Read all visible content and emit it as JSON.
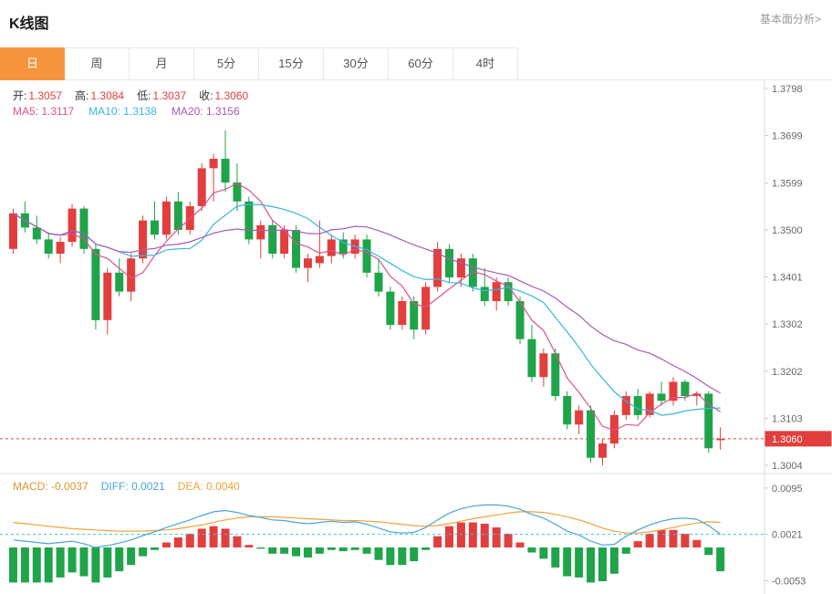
{
  "header": {
    "title": "K线图",
    "link": "基本面分析>"
  },
  "tabs": {
    "active_index": 0,
    "items": [
      {
        "label": "日",
        "name": "tab-day"
      },
      {
        "label": "周",
        "name": "tab-week"
      },
      {
        "label": "月",
        "name": "tab-month"
      },
      {
        "label": "5分",
        "name": "tab-5min"
      },
      {
        "label": "15分",
        "name": "tab-15min"
      },
      {
        "label": "30分",
        "name": "tab-30min"
      },
      {
        "label": "60分",
        "name": "tab-60min"
      },
      {
        "label": "4时",
        "name": "tab-4hour"
      }
    ]
  },
  "legend": {
    "ohlc": [
      {
        "label": "开:",
        "value": "1.3057"
      },
      {
        "label": "高:",
        "value": "1.3084"
      },
      {
        "label": "低:",
        "value": "1.3037"
      },
      {
        "label": "收:",
        "value": "1.3060"
      }
    ],
    "ma": [
      {
        "label": "MA5:",
        "value": "1.3117"
      },
      {
        "label": "MA10:",
        "value": "1.3138"
      },
      {
        "label": "MA20:",
        "value": "1.3156"
      }
    ]
  },
  "macd_legend": [
    {
      "label": "MACD:",
      "value": "-0.0037"
    },
    {
      "label": "DIFF:",
      "value": "0.0021"
    },
    {
      "label": "DEA:",
      "value": "0.0040"
    }
  ],
  "colors": {
    "up": "#e23e3e",
    "down": "#1fa44a",
    "ma5": "#e0508e",
    "ma10": "#38b6e0",
    "ma20": "#a55bb5",
    "diff": "#4ba3dc",
    "dea": "#f0a23a",
    "accent": "#f7953e",
    "price_tag": "#e23e3e",
    "axis_text": "#666666",
    "grid": "#dddddd",
    "current_diff_line": "#35c8e8"
  },
  "chart_data": [
    {
      "type": "candlestick",
      "title": "K线图",
      "timeframe": "日",
      "ohlc_last": {
        "open": 1.3057,
        "high": 1.3084,
        "low": 1.3037,
        "close": 1.306
      },
      "ma_periods": [
        5,
        10,
        20
      ],
      "ylim": [
        1.3004,
        1.3798
      ],
      "y_ticks": [
        1.3798,
        1.3699,
        1.3599,
        1.35,
        1.3401,
        1.3302,
        1.3202,
        1.3103,
        1.3004
      ],
      "current_price": 1.306,
      "candles": [
        [
          1.346,
          1.3545,
          1.345,
          1.3535
        ],
        [
          1.3535,
          1.356,
          1.3495,
          1.3505
        ],
        [
          1.3505,
          1.353,
          1.347,
          1.348
        ],
        [
          1.348,
          1.3495,
          1.344,
          1.345
        ],
        [
          1.345,
          1.3485,
          1.343,
          1.3475
        ],
        [
          1.3475,
          1.3555,
          1.3465,
          1.3545
        ],
        [
          1.3545,
          1.355,
          1.345,
          1.346
        ],
        [
          1.346,
          1.347,
          1.329,
          1.331
        ],
        [
          1.331,
          1.342,
          1.328,
          1.341
        ],
        [
          1.341,
          1.344,
          1.336,
          1.337
        ],
        [
          1.337,
          1.345,
          1.335,
          1.344
        ],
        [
          1.344,
          1.353,
          1.343,
          1.352
        ],
        [
          1.352,
          1.356,
          1.348,
          1.349
        ],
        [
          1.349,
          1.357,
          1.348,
          1.356
        ],
        [
          1.356,
          1.358,
          1.349,
          1.35
        ],
        [
          1.35,
          1.356,
          1.349,
          1.355
        ],
        [
          1.355,
          1.364,
          1.354,
          1.363
        ],
        [
          1.363,
          1.366,
          1.356,
          1.365
        ],
        [
          1.365,
          1.371,
          1.358,
          1.36
        ],
        [
          1.36,
          1.364,
          1.354,
          1.356
        ],
        [
          1.356,
          1.357,
          1.347,
          1.348
        ],
        [
          1.348,
          1.352,
          1.344,
          1.351
        ],
        [
          1.351,
          1.352,
          1.344,
          1.345
        ],
        [
          1.345,
          1.351,
          1.344,
          1.35
        ],
        [
          1.35,
          1.351,
          1.341,
          1.342
        ],
        [
          1.342,
          1.345,
          1.339,
          1.344
        ],
        [
          1.343,
          1.352,
          1.342,
          1.3445
        ],
        [
          1.3445,
          1.349,
          1.343,
          1.348
        ],
        [
          1.348,
          1.3495,
          1.344,
          1.345
        ],
        [
          1.345,
          1.349,
          1.344,
          1.348
        ],
        [
          1.348,
          1.349,
          1.34,
          1.341
        ],
        [
          1.341,
          1.344,
          1.336,
          1.337
        ],
        [
          1.337,
          1.338,
          1.329,
          1.33
        ],
        [
          1.33,
          1.336,
          1.329,
          1.335
        ],
        [
          1.335,
          1.336,
          1.327,
          1.329
        ],
        [
          1.329,
          1.339,
          1.328,
          1.338
        ],
        [
          1.338,
          1.3475,
          1.337,
          1.346
        ],
        [
          1.346,
          1.347,
          1.339,
          1.34
        ],
        [
          1.34,
          1.345,
          1.338,
          1.344
        ],
        [
          1.344,
          1.345,
          1.337,
          1.338
        ],
        [
          1.338,
          1.342,
          1.334,
          1.335
        ],
        [
          1.335,
          1.34,
          1.333,
          1.339
        ],
        [
          1.339,
          1.34,
          1.334,
          1.335
        ],
        [
          1.335,
          1.336,
          1.326,
          1.327
        ],
        [
          1.327,
          1.33,
          1.318,
          1.319
        ],
        [
          1.319,
          1.325,
          1.317,
          1.324
        ],
        [
          1.324,
          1.325,
          1.314,
          1.315
        ],
        [
          1.315,
          1.316,
          1.308,
          1.309
        ],
        [
          1.309,
          1.313,
          1.307,
          1.312
        ],
        [
          1.312,
          1.313,
          1.301,
          1.302
        ],
        [
          1.302,
          1.306,
          1.3004,
          1.305
        ],
        [
          1.305,
          1.312,
          1.304,
          1.311
        ],
        [
          1.311,
          1.316,
          1.31,
          1.315
        ],
        [
          1.315,
          1.3165,
          1.31,
          1.311
        ],
        [
          1.311,
          1.316,
          1.3105,
          1.3155
        ],
        [
          1.3155,
          1.318,
          1.313,
          1.314
        ],
        [
          1.314,
          1.319,
          1.313,
          1.318
        ],
        [
          1.318,
          1.3185,
          1.314,
          1.315
        ],
        [
          1.315,
          1.316,
          1.313,
          1.3155
        ],
        [
          1.3155,
          1.316,
          1.303,
          1.304
        ],
        [
          1.3057,
          1.3084,
          1.3037,
          1.306
        ]
      ]
    },
    {
      "type": "bar",
      "name": "MACD",
      "values_last": {
        "macd": -0.0037,
        "diff": 0.0021,
        "dea": 0.004
      },
      "hist_formula": "2*(DIFF-DEA)",
      "ylim": [
        -0.007,
        0.0105
      ],
      "y_ticks": [
        0.0095,
        0.0021,
        -0.0053
      ],
      "series": [
        {
          "name": "DIFF",
          "values": [
            0.0012,
            0.001,
            0.0008,
            0.0006,
            0.0008,
            0.001,
            0.0006,
            0.0,
            0.0003,
            0.0007,
            0.0012,
            0.0019,
            0.0025,
            0.0032,
            0.0038,
            0.0044,
            0.0051,
            0.0057,
            0.0059,
            0.0056,
            0.0051,
            0.0048,
            0.0044,
            0.0043,
            0.004,
            0.0038,
            0.004,
            0.0042,
            0.004,
            0.0041,
            0.0037,
            0.0031,
            0.0025,
            0.0023,
            0.0024,
            0.0032,
            0.0044,
            0.0055,
            0.0062,
            0.0066,
            0.0068,
            0.0068,
            0.0066,
            0.0061,
            0.0053,
            0.0047,
            0.0037,
            0.0026,
            0.002,
            0.001,
            0.0004,
            0.0005,
            0.0018,
            0.0028,
            0.0036,
            0.0042,
            0.0046,
            0.0047,
            0.0045,
            0.0035,
            0.0021
          ]
        },
        {
          "name": "DEA",
          "values": [
            0.004,
            0.0038,
            0.0036,
            0.0034,
            0.0032,
            0.003,
            0.0029,
            0.0028,
            0.0027,
            0.0026,
            0.0026,
            0.0026,
            0.0027,
            0.0028,
            0.003,
            0.0033,
            0.0036,
            0.004,
            0.0044,
            0.0047,
            0.0049,
            0.0049,
            0.0049,
            0.0048,
            0.0047,
            0.0046,
            0.0045,
            0.0044,
            0.0043,
            0.0043,
            0.0042,
            0.0041,
            0.0039,
            0.0037,
            0.0035,
            0.0034,
            0.0035,
            0.0038,
            0.0042,
            0.0046,
            0.0049,
            0.0052,
            0.0055,
            0.0057,
            0.0057,
            0.0056,
            0.0053,
            0.0049,
            0.0044,
            0.0038,
            0.0031,
            0.0026,
            0.0023,
            0.0023,
            0.0025,
            0.0028,
            0.0032,
            0.0036,
            0.0039,
            0.0041,
            0.004
          ]
        }
      ]
    }
  ]
}
